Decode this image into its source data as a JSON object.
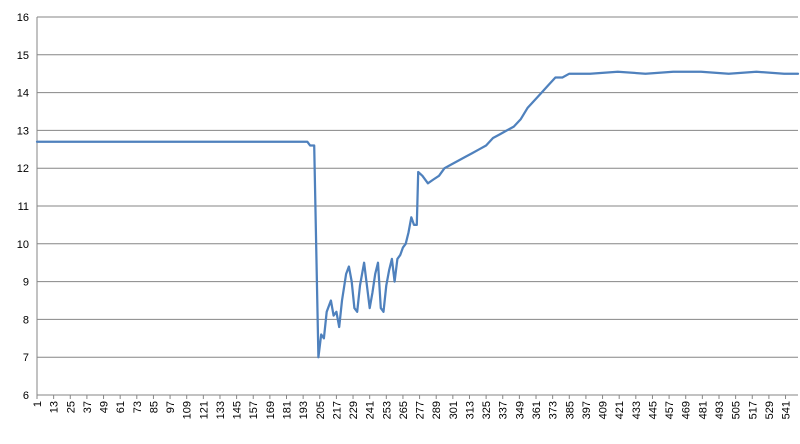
{
  "chart_data": {
    "type": "line",
    "title": "",
    "xlabel": "",
    "ylabel": "",
    "ylim": [
      6,
      16
    ],
    "xlim": [
      1,
      550
    ],
    "yticks": [
      "6",
      "7",
      "8",
      "9",
      "10",
      "11",
      "12",
      "13",
      "14",
      "15",
      "16"
    ],
    "xticks": [
      "1",
      "13",
      "25",
      "37",
      "49",
      "61",
      "73",
      "85",
      "97",
      "109",
      "121",
      "133",
      "145",
      "157",
      "169",
      "181",
      "193",
      "205",
      "217",
      "229",
      "241",
      "253",
      "265",
      "277",
      "289",
      "301",
      "313",
      "325",
      "337",
      "349",
      "361",
      "373",
      "385",
      "397",
      "409",
      "421",
      "433",
      "445",
      "457",
      "469",
      "481",
      "493",
      "505",
      "517",
      "529",
      "541"
    ],
    "grid": true,
    "legend": "none",
    "series": [
      {
        "color": "#4F81BD",
        "points": [
          [
            1,
            12.7
          ],
          [
            20,
            12.7
          ],
          [
            40,
            12.7
          ],
          [
            60,
            12.7
          ],
          [
            80,
            12.7
          ],
          [
            100,
            12.7
          ],
          [
            120,
            12.7
          ],
          [
            140,
            12.7
          ],
          [
            160,
            12.7
          ],
          [
            180,
            12.7
          ],
          [
            196,
            12.7
          ],
          [
            198,
            12.6
          ],
          [
            201,
            12.6
          ],
          [
            204,
            7.0
          ],
          [
            206,
            7.6
          ],
          [
            208,
            7.5
          ],
          [
            210,
            8.2
          ],
          [
            213,
            8.5
          ],
          [
            215,
            8.1
          ],
          [
            217,
            8.2
          ],
          [
            219,
            7.8
          ],
          [
            221,
            8.5
          ],
          [
            224,
            9.2
          ],
          [
            226,
            9.4
          ],
          [
            228,
            9.0
          ],
          [
            230,
            8.3
          ],
          [
            232,
            8.2
          ],
          [
            234,
            8.9
          ],
          [
            237,
            9.5
          ],
          [
            239,
            8.9
          ],
          [
            241,
            8.3
          ],
          [
            243,
            8.7
          ],
          [
            245,
            9.2
          ],
          [
            247,
            9.5
          ],
          [
            249,
            8.3
          ],
          [
            251,
            8.2
          ],
          [
            253,
            8.9
          ],
          [
            255,
            9.3
          ],
          [
            257,
            9.6
          ],
          [
            259,
            9.0
          ],
          [
            261,
            9.6
          ],
          [
            263,
            9.7
          ],
          [
            265,
            9.9
          ],
          [
            267,
            10.0
          ],
          [
            269,
            10.3
          ],
          [
            271,
            10.7
          ],
          [
            273,
            10.5
          ],
          [
            275,
            10.5
          ],
          [
            276,
            11.9
          ],
          [
            279,
            11.8
          ],
          [
            283,
            11.6
          ],
          [
            287,
            11.7
          ],
          [
            291,
            11.8
          ],
          [
            295,
            12.0
          ],
          [
            300,
            12.1
          ],
          [
            305,
            12.2
          ],
          [
            310,
            12.3
          ],
          [
            315,
            12.4
          ],
          [
            320,
            12.5
          ],
          [
            325,
            12.6
          ],
          [
            330,
            12.8
          ],
          [
            335,
            12.9
          ],
          [
            340,
            13.0
          ],
          [
            345,
            13.1
          ],
          [
            350,
            13.3
          ],
          [
            355,
            13.6
          ],
          [
            360,
            13.8
          ],
          [
            365,
            14.0
          ],
          [
            370,
            14.2
          ],
          [
            375,
            14.4
          ],
          [
            380,
            14.4
          ],
          [
            385,
            14.5
          ],
          [
            390,
            14.5
          ],
          [
            400,
            14.5
          ],
          [
            420,
            14.55
          ],
          [
            440,
            14.5
          ],
          [
            460,
            14.55
          ],
          [
            480,
            14.55
          ],
          [
            500,
            14.5
          ],
          [
            520,
            14.55
          ],
          [
            540,
            14.5
          ],
          [
            550,
            14.5
          ]
        ]
      }
    ]
  }
}
